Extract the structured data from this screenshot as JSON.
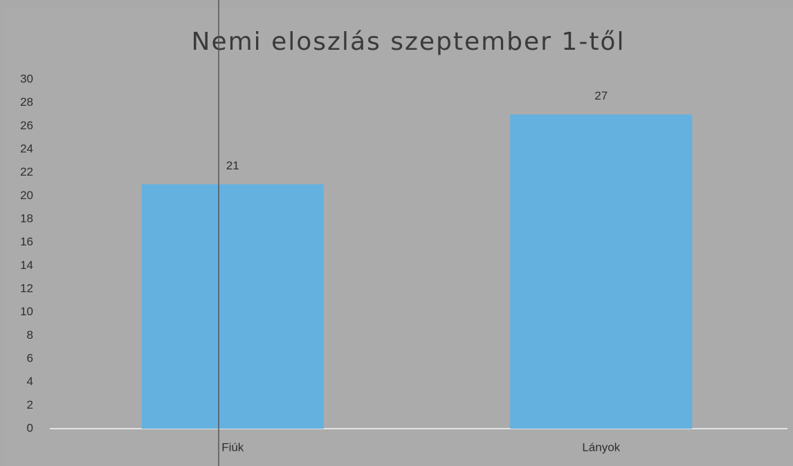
{
  "chart_data": {
    "type": "bar",
    "title": "Nemi eloszlás szeptember 1-től",
    "categories": [
      "Fiúk",
      "Lányok"
    ],
    "values": [
      21,
      27
    ],
    "color": "#64b1e0",
    "ylim": [
      0,
      30
    ],
    "yticks": [
      0,
      2,
      4,
      6,
      8,
      10,
      12,
      14,
      16,
      18,
      20,
      22,
      24,
      26,
      28,
      30
    ],
    "grid": false
  }
}
